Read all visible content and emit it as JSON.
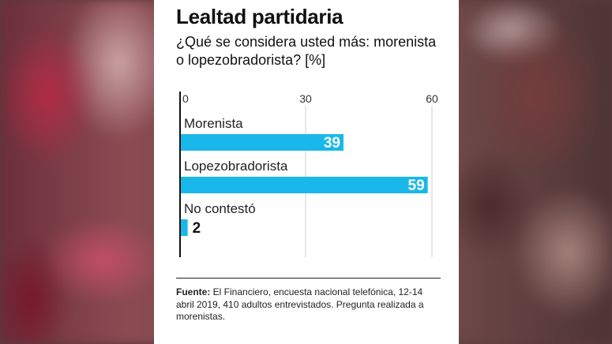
{
  "chart_data": {
    "type": "bar",
    "orientation": "horizontal",
    "title": "Lealtad partidaria",
    "subtitle": "¿Qué se considera usted más: morenista o lopezobradorista? [%]",
    "categories": [
      "Morenista",
      "Lopezobradorista",
      "No contestó"
    ],
    "values": [
      39,
      59,
      2
    ],
    "xlim": [
      0,
      60
    ],
    "xticks": [
      0,
      30,
      60
    ],
    "grid": true,
    "bar_color": "#1ab8ea"
  },
  "footer": {
    "label": "Fuente:",
    "text": " El Financiero, encuesta nacional telefónica, 12-14 abril 2019, 410 adultos entrevistados. Pregunta realizada a morenistas."
  }
}
